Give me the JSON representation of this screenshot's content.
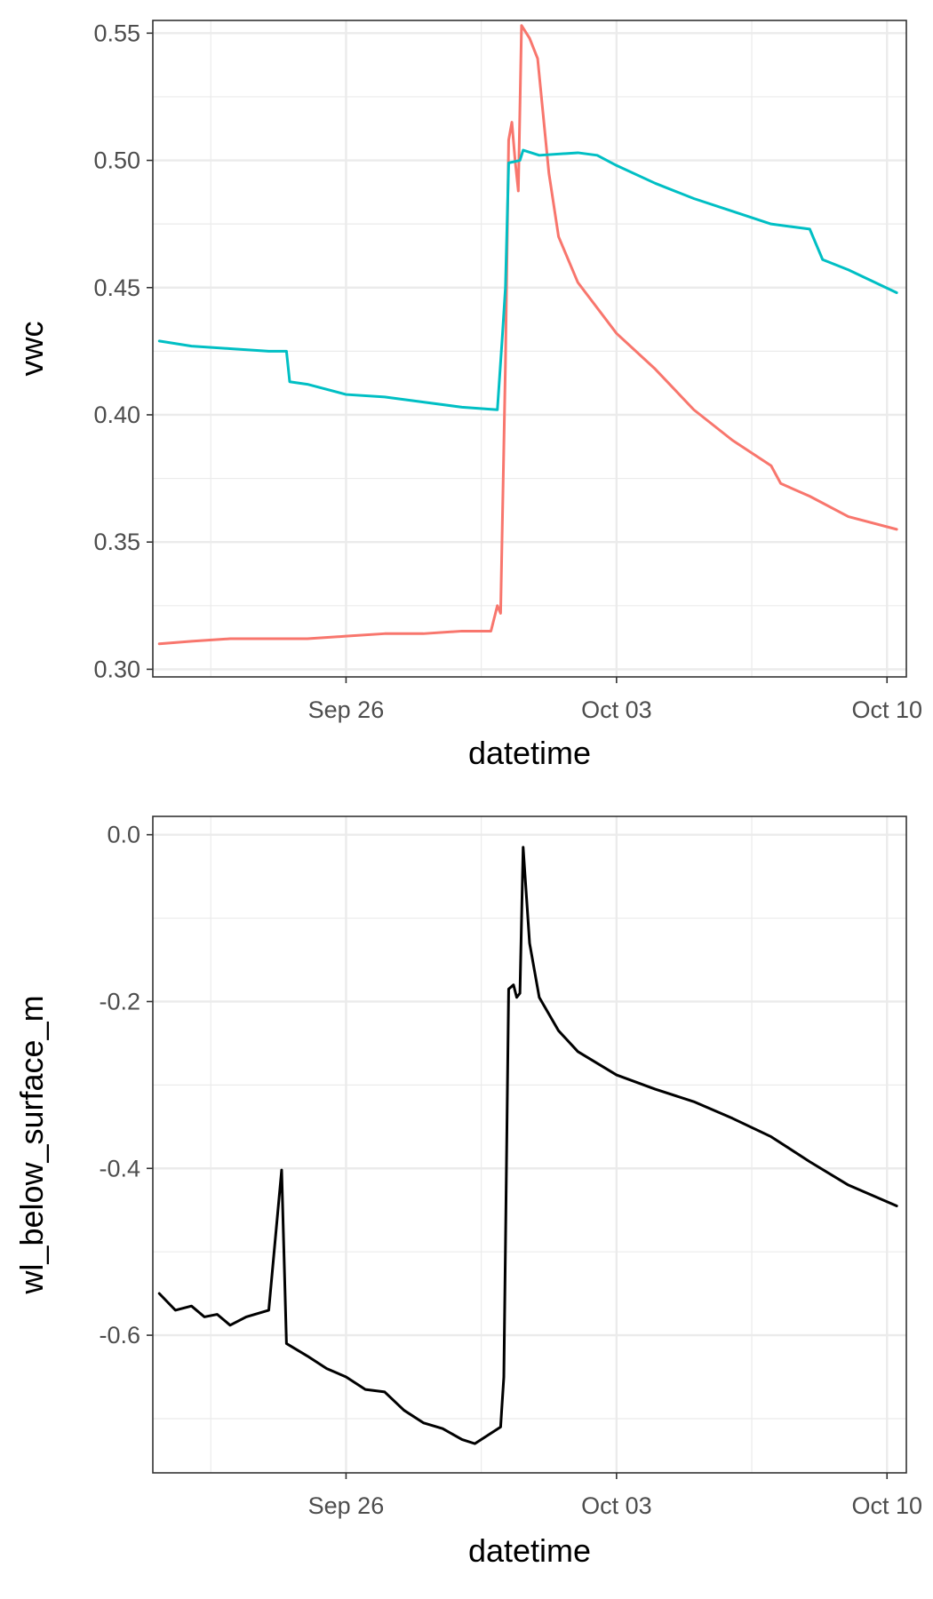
{
  "chart_data": [
    {
      "type": "line",
      "xlabel": "datetime",
      "ylabel": "vwc",
      "x_ticks": [
        "2023-09-26",
        "2023-10-03",
        "2023-10-10"
      ],
      "x_tick_labels": [
        "Sep 26",
        "Oct 03",
        "Oct 10"
      ],
      "xlim": [
        "2023-09-21T00:00",
        "2023-10-10T12:00"
      ],
      "y_ticks": [
        0.3,
        0.35,
        0.4,
        0.45,
        0.5,
        0.55
      ],
      "y_tick_labels": [
        "0.30",
        "0.35",
        "0.40",
        "0.45",
        "0.50",
        "0.55"
      ],
      "ylim": [
        0.297,
        0.555
      ],
      "grid": true,
      "legend": "none",
      "series": [
        {
          "color": "#F8766D",
          "points": [
            [
              "2023-09-21T04:00",
              0.31
            ],
            [
              "2023-09-22T00:00",
              0.311
            ],
            [
              "2023-09-23T00:00",
              0.312
            ],
            [
              "2023-09-24T00:00",
              0.312
            ],
            [
              "2023-09-25T00:00",
              0.312
            ],
            [
              "2023-09-26T00:00",
              0.313
            ],
            [
              "2023-09-27T00:00",
              0.314
            ],
            [
              "2023-09-28T00:00",
              0.314
            ],
            [
              "2023-09-29T00:00",
              0.315
            ],
            [
              "2023-09-29T18:00",
              0.315
            ],
            [
              "2023-09-29T22:00",
              0.325
            ],
            [
              "2023-09-30T00:00",
              0.322
            ],
            [
              "2023-09-30T03:00",
              0.42
            ],
            [
              "2023-09-30T05:00",
              0.508
            ],
            [
              "2023-09-30T07:00",
              0.515
            ],
            [
              "2023-09-30T09:00",
              0.5
            ],
            [
              "2023-09-30T11:00",
              0.488
            ],
            [
              "2023-09-30T13:00",
              0.553
            ],
            [
              "2023-09-30T18:00",
              0.548
            ],
            [
              "2023-09-30T23:00",
              0.54
            ],
            [
              "2023-10-01T06:00",
              0.495
            ],
            [
              "2023-10-01T12:00",
              0.47
            ],
            [
              "2023-10-02T00:00",
              0.452
            ],
            [
              "2023-10-03T00:00",
              0.432
            ],
            [
              "2023-10-04T00:00",
              0.418
            ],
            [
              "2023-10-05T00:00",
              0.402
            ],
            [
              "2023-10-06T00:00",
              0.39
            ],
            [
              "2023-10-07T00:00",
              0.38
            ],
            [
              "2023-10-07T06:00",
              0.373
            ],
            [
              "2023-10-08T00:00",
              0.368
            ],
            [
              "2023-10-09T00:00",
              0.36
            ],
            [
              "2023-10-10T06:00",
              0.355
            ]
          ]
        },
        {
          "color": "#00BFC4",
          "points": [
            [
              "2023-09-21T04:00",
              0.429
            ],
            [
              "2023-09-22T00:00",
              0.427
            ],
            [
              "2023-09-23T00:00",
              0.426
            ],
            [
              "2023-09-24T00:00",
              0.425
            ],
            [
              "2023-09-24T11:00",
              0.425
            ],
            [
              "2023-09-24T13:00",
              0.413
            ],
            [
              "2023-09-25T00:00",
              0.412
            ],
            [
              "2023-09-26T00:00",
              0.408
            ],
            [
              "2023-09-27T00:00",
              0.407
            ],
            [
              "2023-09-28T00:00",
              0.405
            ],
            [
              "2023-09-29T00:00",
              0.403
            ],
            [
              "2023-09-29T22:00",
              0.402
            ],
            [
              "2023-09-30T01:00",
              0.43
            ],
            [
              "2023-09-30T03:00",
              0.45
            ],
            [
              "2023-09-30T05:00",
              0.499
            ],
            [
              "2023-09-30T12:00",
              0.5
            ],
            [
              "2023-09-30T14:00",
              0.504
            ],
            [
              "2023-10-01T00:00",
              0.502
            ],
            [
              "2023-10-02T00:00",
              0.503
            ],
            [
              "2023-10-02T12:00",
              0.502
            ],
            [
              "2023-10-03T00:00",
              0.498
            ],
            [
              "2023-10-04T00:00",
              0.491
            ],
            [
              "2023-10-05T00:00",
              0.485
            ],
            [
              "2023-10-06T00:00",
              0.48
            ],
            [
              "2023-10-07T00:00",
              0.475
            ],
            [
              "2023-10-08T00:00",
              0.473
            ],
            [
              "2023-10-08T08:00",
              0.461
            ],
            [
              "2023-10-09T00:00",
              0.457
            ],
            [
              "2023-10-10T06:00",
              0.448
            ]
          ]
        }
      ]
    },
    {
      "type": "line",
      "xlabel": "datetime",
      "ylabel": "wl_below_surface_m",
      "x_ticks": [
        "2023-09-26",
        "2023-10-03",
        "2023-10-10"
      ],
      "x_tick_labels": [
        "Sep 26",
        "Oct 03",
        "Oct 10"
      ],
      "xlim": [
        "2023-09-21T00:00",
        "2023-10-10T12:00"
      ],
      "y_ticks": [
        0.0,
        -0.2,
        -0.4,
        -0.6
      ],
      "y_tick_labels": [
        "0.0",
        "-0.2",
        "-0.4",
        "-0.6"
      ],
      "ylim": [
        -0.765,
        0.022
      ],
      "grid": true,
      "legend": "none",
      "series": [
        {
          "color": "#000000",
          "points": [
            [
              "2023-09-21T04:00",
              -0.55
            ],
            [
              "2023-09-21T14:00",
              -0.57
            ],
            [
              "2023-09-22T00:00",
              -0.565
            ],
            [
              "2023-09-22T08:00",
              -0.578
            ],
            [
              "2023-09-22T16:00",
              -0.575
            ],
            [
              "2023-09-23T00:00",
              -0.588
            ],
            [
              "2023-09-23T10:00",
              -0.578
            ],
            [
              "2023-09-24T00:00",
              -0.57
            ],
            [
              "2023-09-24T08:00",
              -0.402
            ],
            [
              "2023-09-24T11:00",
              -0.61
            ],
            [
              "2023-09-25T00:00",
              -0.625
            ],
            [
              "2023-09-25T12:00",
              -0.64
            ],
            [
              "2023-09-26T00:00",
              -0.65
            ],
            [
              "2023-09-26T12:00",
              -0.665
            ],
            [
              "2023-09-27T00:00",
              -0.668
            ],
            [
              "2023-09-27T12:00",
              -0.69
            ],
            [
              "2023-09-28T00:00",
              -0.705
            ],
            [
              "2023-09-28T12:00",
              -0.712
            ],
            [
              "2023-09-29T00:00",
              -0.725
            ],
            [
              "2023-09-29T08:00",
              -0.73
            ],
            [
              "2023-09-29T16:00",
              -0.72
            ],
            [
              "2023-09-30T00:00",
              -0.71
            ],
            [
              "2023-09-30T02:00",
              -0.65
            ],
            [
              "2023-09-30T05:00",
              -0.185
            ],
            [
              "2023-09-30T08:00",
              -0.18
            ],
            [
              "2023-09-30T10:00",
              -0.195
            ],
            [
              "2023-09-30T12:00",
              -0.19
            ],
            [
              "2023-09-30T14:00",
              -0.015
            ],
            [
              "2023-09-30T18:00",
              -0.13
            ],
            [
              "2023-10-01T00:00",
              -0.195
            ],
            [
              "2023-10-01T12:00",
              -0.235
            ],
            [
              "2023-10-02T00:00",
              -0.26
            ],
            [
              "2023-10-03T00:00",
              -0.288
            ],
            [
              "2023-10-04T00:00",
              -0.305
            ],
            [
              "2023-10-05T00:00",
              -0.32
            ],
            [
              "2023-10-06T00:00",
              -0.34
            ],
            [
              "2023-10-07T00:00",
              -0.362
            ],
            [
              "2023-10-08T00:00",
              -0.392
            ],
            [
              "2023-10-09T00:00",
              -0.42
            ],
            [
              "2023-10-10T06:00",
              -0.445
            ]
          ]
        }
      ]
    }
  ]
}
